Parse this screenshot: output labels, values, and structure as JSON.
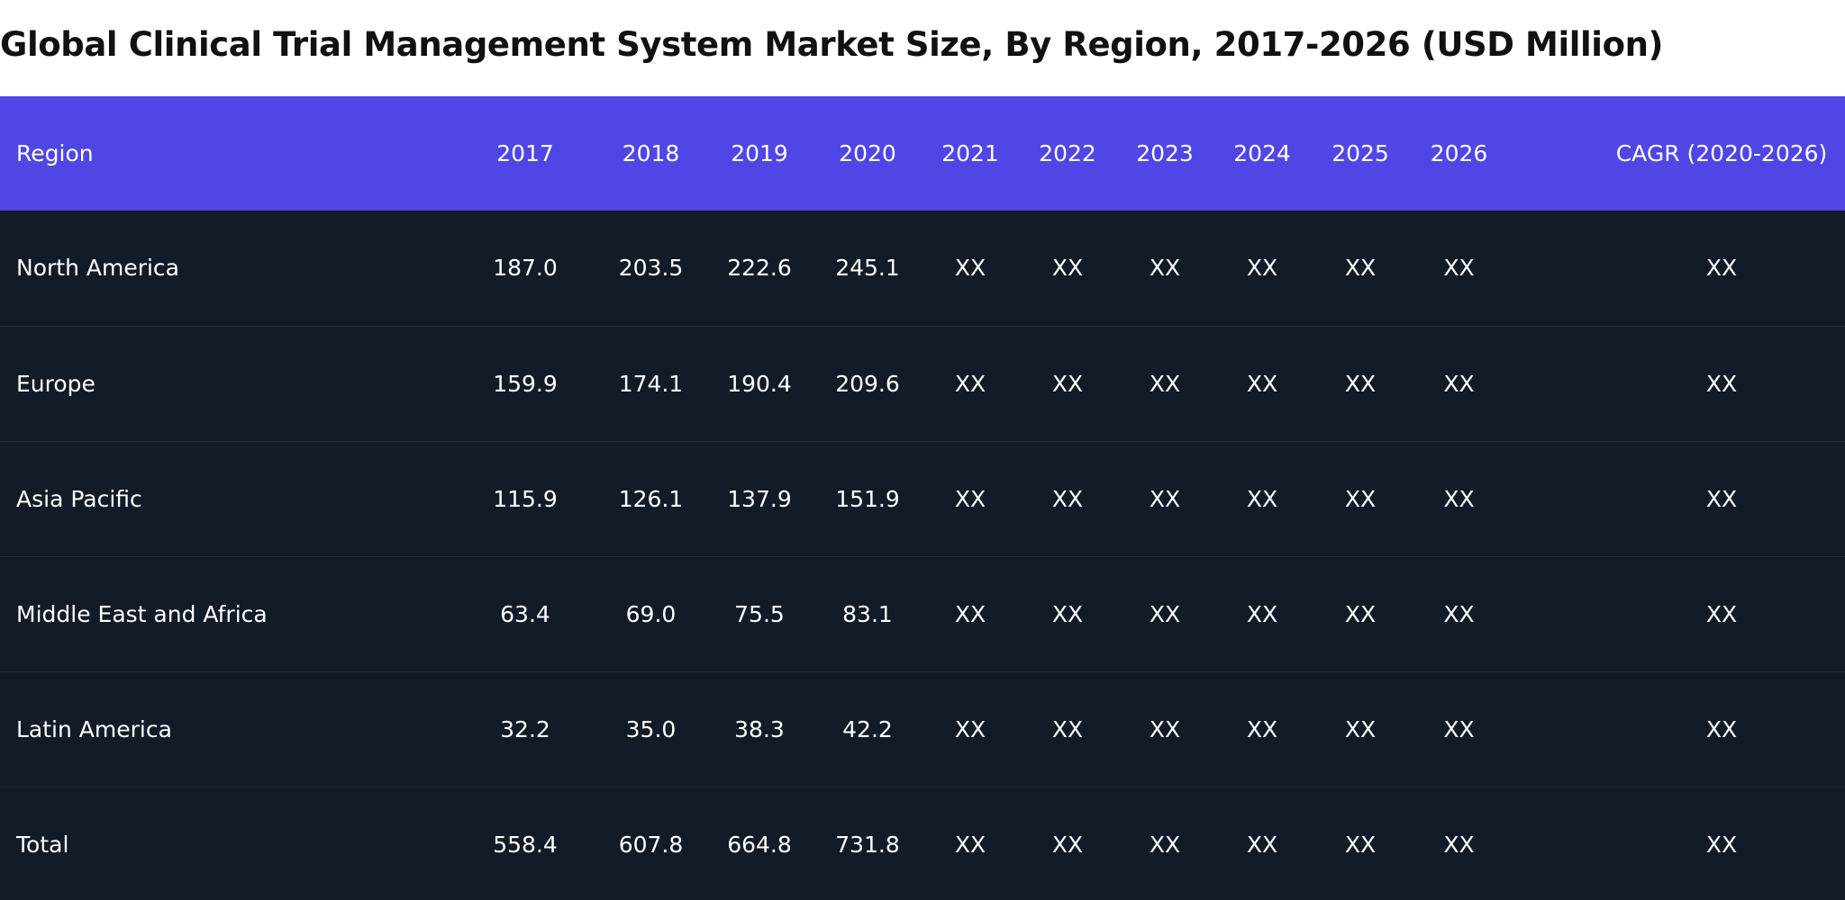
{
  "title": "Global Clinical Trial Management System Market Size, By Region, 2017-2026 (USD Million)",
  "table": {
    "headers": [
      "Region",
      "2017",
      "2018",
      "2019",
      "2020",
      "2021",
      "2022",
      "2023",
      "2024",
      "2025",
      "2026",
      "CAGR (2020-2026)"
    ],
    "rows": [
      [
        "North America",
        "187.0",
        "203.5",
        "222.6",
        "245.1",
        "XX",
        "XX",
        "XX",
        "XX",
        "XX",
        "XX",
        "XX"
      ],
      [
        "Europe",
        "159.9",
        "174.1",
        "190.4",
        "209.6",
        "XX",
        "XX",
        "XX",
        "XX",
        "XX",
        "XX",
        "XX"
      ],
      [
        "Asia Pacific",
        "115.9",
        "126.1",
        "137.9",
        "151.9",
        "XX",
        "XX",
        "XX",
        "XX",
        "XX",
        "XX",
        "XX"
      ],
      [
        "Middle East and Africa",
        "63.4",
        "69.0",
        "75.5",
        "83.1",
        "XX",
        "XX",
        "XX",
        "XX",
        "XX",
        "XX",
        "XX"
      ],
      [
        "Latin America",
        "32.2",
        "35.0",
        "38.3",
        "42.2",
        "XX",
        "XX",
        "XX",
        "XX",
        "XX",
        "XX",
        "XX"
      ],
      [
        "Total",
        "558.4",
        "607.8",
        "664.8",
        "731.8",
        "XX",
        "XX",
        "XX",
        "XX",
        "XX",
        "XX",
        "XX"
      ]
    ]
  },
  "colors": {
    "header_bg": "#5046e5",
    "body_bg": "#131a28",
    "text": "#ffffff"
  }
}
